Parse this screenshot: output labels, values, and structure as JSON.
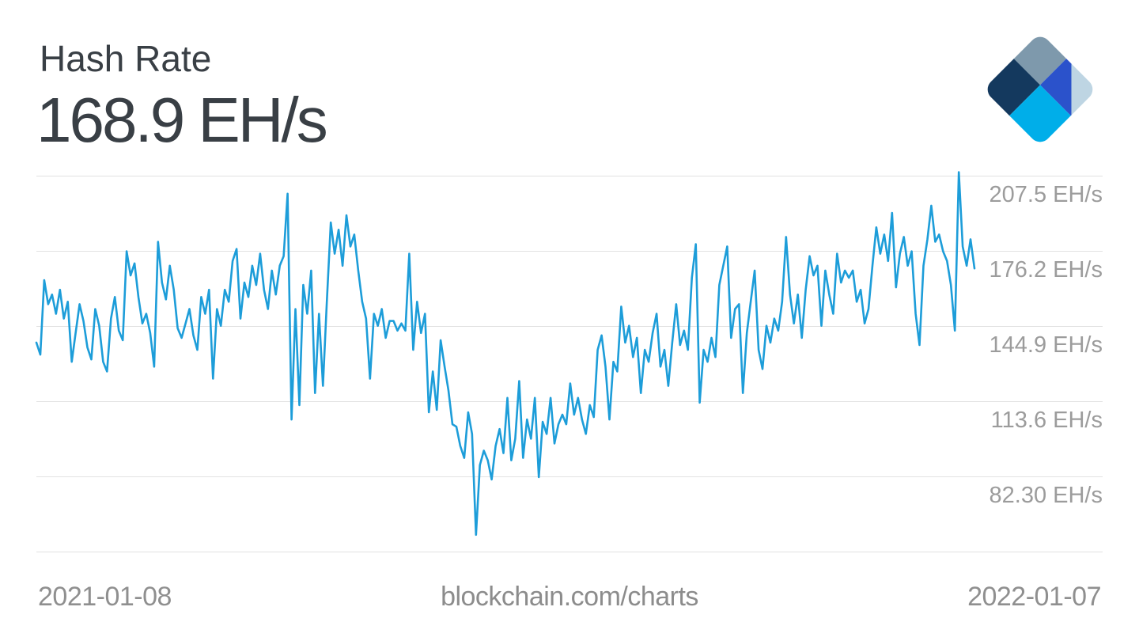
{
  "header": {
    "title": "Hash Rate",
    "current_value": "168.9 EH/s"
  },
  "logo": {
    "name": "blockchain.com logo",
    "colors": {
      "slate": "#7e99ac",
      "navy": "#14395e",
      "cyan": "#00aee9",
      "royal": "#2b52cb",
      "pale": "#bed5e3"
    }
  },
  "footer": {
    "x_start_label": "2021-01-08",
    "watermark": "blockchain.com/charts",
    "x_end_label": "2022-01-07"
  },
  "chart_data": {
    "type": "line",
    "title": "Hash Rate",
    "subtitle_current_value": "168.9 EH/s",
    "unit": "EH/s",
    "x_range": [
      "2021-01-08",
      "2022-01-07"
    ],
    "legend": "none",
    "grid": "horizontal-only",
    "y_tick_labels": [
      "207.5 EH/s",
      "176.2 EH/s",
      "144.9 EH/s",
      "113.6 EH/s",
      "82.30 EH/s"
    ],
    "y_gridline_values": [
      207.5,
      176.2,
      144.9,
      113.6,
      82.3,
      51.0
    ],
    "ylim": [
      51.0,
      215.0
    ],
    "line_color": "#1d9dd9",
    "grid_color": "#e2e2e2",
    "label_color": "#9c9c9c",
    "values_ehs": [
      138,
      133,
      164,
      154,
      158,
      150,
      160,
      148,
      155,
      130,
      142,
      154,
      147,
      136,
      131,
      152,
      145,
      130,
      126,
      148,
      157,
      143,
      139,
      176,
      166,
      171,
      157,
      146,
      150,
      142,
      128,
      180,
      163,
      156,
      170,
      160,
      144,
      140,
      146,
      152,
      141,
      135,
      157,
      150,
      160,
      123,
      152,
      145,
      160,
      155,
      172,
      177,
      148,
      163,
      157,
      170,
      162,
      175,
      160,
      152,
      168,
      158,
      170,
      174,
      200,
      106,
      152,
      112,
      162,
      150,
      168,
      117,
      150,
      120,
      155,
      188,
      175,
      185,
      170,
      191,
      178,
      183,
      168,
      155,
      148,
      123,
      150,
      145,
      152,
      140,
      147,
      147,
      143,
      146,
      143,
      175,
      135,
      155,
      142,
      150,
      109,
      126,
      110,
      139,
      128,
      118,
      104,
      103,
      95,
      90,
      109,
      100,
      58,
      87,
      93,
      89,
      81,
      95,
      102,
      92,
      115,
      89,
      98,
      122,
      90,
      106,
      98,
      115,
      82,
      105,
      100,
      115,
      96,
      104,
      108,
      104,
      121,
      108,
      115,
      106,
      100,
      112,
      107,
      135,
      141,
      128,
      106,
      130,
      126,
      153,
      138,
      145,
      132,
      140,
      117,
      135,
      130,
      142,
      150,
      128,
      135,
      120,
      138,
      154,
      137,
      143,
      135,
      165,
      179,
      113,
      135,
      130,
      140,
      132,
      162,
      170,
      178,
      140,
      152,
      154,
      117,
      142,
      155,
      168,
      135,
      127,
      145,
      138,
      148,
      143,
      155,
      182,
      158,
      146,
      158,
      140,
      160,
      174,
      166,
      170,
      145,
      168,
      158,
      150,
      175,
      163,
      168,
      165,
      168,
      155,
      160,
      146,
      152,
      170,
      186,
      175,
      183,
      172,
      192,
      161,
      175,
      182,
      170,
      176,
      150,
      137,
      170,
      181,
      195,
      180,
      183,
      176,
      172,
      162,
      143,
      209,
      178,
      170,
      181,
      168.9
    ]
  }
}
